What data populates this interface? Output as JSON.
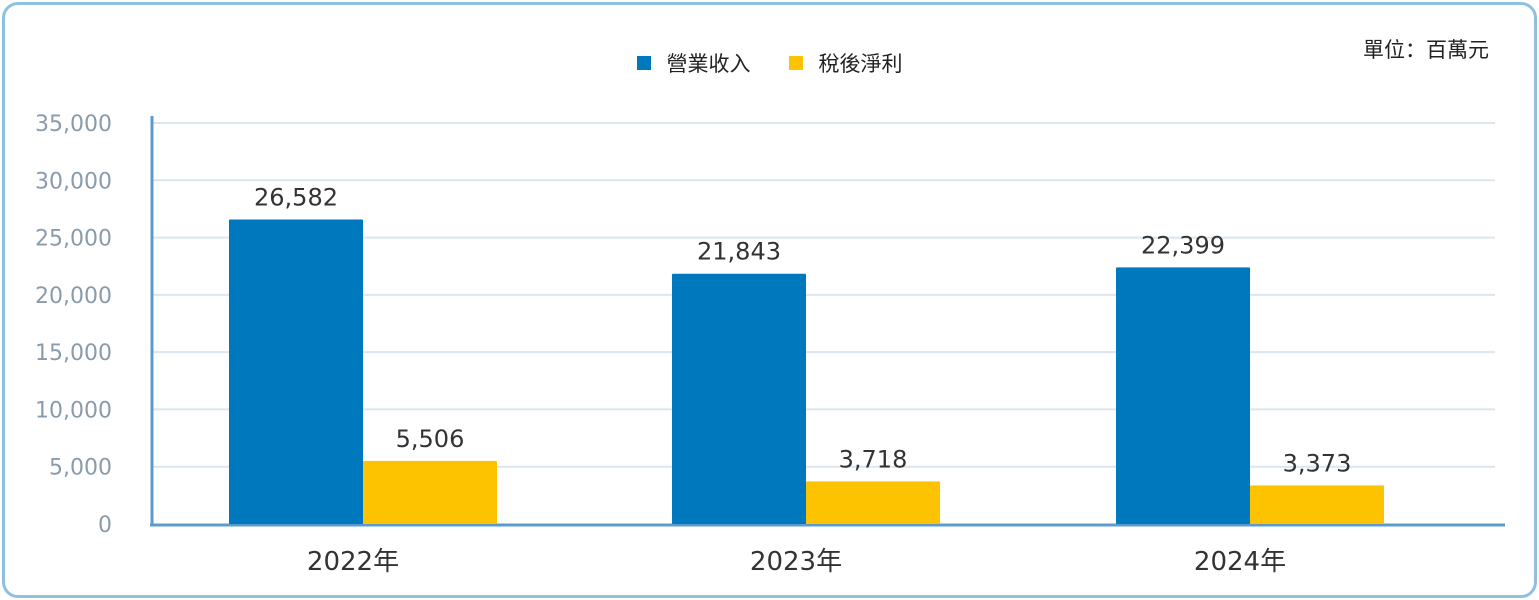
{
  "unit_label": "單位：百萬元",
  "colors": {
    "revenue": "#0078bd",
    "net_income": "#fdc300",
    "grid": "#dbe6ee",
    "axis": "#5b9bd0",
    "tick_text": "#8a9bab",
    "label_text": "#333333",
    "frame": "#8fc0e0"
  },
  "chart_data": {
    "type": "bar",
    "categories": [
      "2022年",
      "2023年",
      "2024年"
    ],
    "series": [
      {
        "name": "營業收入",
        "values": [
          26582,
          21843,
          22399
        ],
        "labels": [
          "26,582",
          "21,843",
          "22,399"
        ]
      },
      {
        "name": "稅後淨利",
        "values": [
          5506,
          3718,
          3373
        ],
        "labels": [
          "5,506",
          "3,718",
          "3,373"
        ]
      }
    ],
    "ylim": [
      0,
      35000
    ],
    "yticks": [
      0,
      5000,
      10000,
      15000,
      20000,
      25000,
      30000,
      35000
    ],
    "ytick_labels": [
      "0",
      "5,000",
      "10,000",
      "15,000",
      "20,000",
      "25,000",
      "30,000",
      "35,000"
    ],
    "grid": true,
    "legend": "top-center",
    "xlabel": "",
    "ylabel": ""
  }
}
